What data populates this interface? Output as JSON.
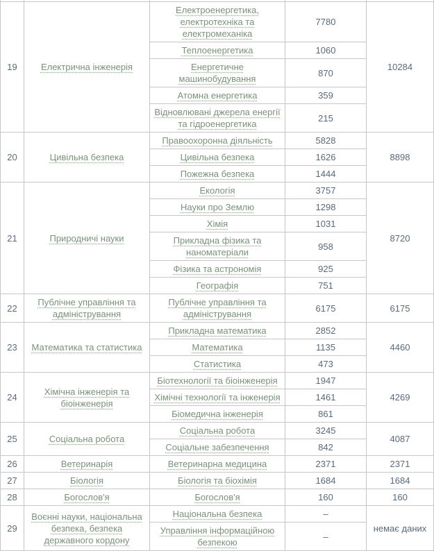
{
  "colors": {
    "link_green": "#7b917b",
    "number_gray": "#5a6978",
    "border_gray": "#c6c6c6",
    "background": "#ffffff"
  },
  "table": {
    "no_data_dash": "–",
    "groups": [
      {
        "no": "19",
        "field": "Електрична інженерія",
        "total": "10284",
        "specialties": [
          {
            "name": "Електроенергетика, електротехніка та електромеханіка",
            "count": "7780"
          },
          {
            "name": "Теплоенергетика",
            "count": "1060"
          },
          {
            "name": "Енергетичне машинобудування",
            "count": "870"
          },
          {
            "name": "Атомна енергетика",
            "count": "359"
          },
          {
            "name": "Відновлювані джерела енергії та гідроенергетика",
            "count": "215"
          }
        ]
      },
      {
        "no": "20",
        "field": "Цивільна безпека",
        "total": "8898",
        "specialties": [
          {
            "name": "Правоохоронна діяльність",
            "count": "5828"
          },
          {
            "name": "Цивільна безпека",
            "count": "1626"
          },
          {
            "name": "Пожежна безпека",
            "count": "1444"
          }
        ]
      },
      {
        "no": "21",
        "field": "Природничі науки",
        "total": "8720",
        "specialties": [
          {
            "name": "Екологія",
            "count": "3757"
          },
          {
            "name": "Науки про Землю",
            "count": "1298"
          },
          {
            "name": "Хімія",
            "count": "1031"
          },
          {
            "name": "Прикладна фізика та наноматеріали",
            "count": "958"
          },
          {
            "name": "Фізика та астрономія",
            "count": "925"
          },
          {
            "name": "Географія",
            "count": "751"
          }
        ]
      },
      {
        "no": "22",
        "field": "Публічне управління та адміністрування",
        "total": "6175",
        "specialties": [
          {
            "name": "Публічне управління та адміністрування",
            "count": "6175"
          }
        ]
      },
      {
        "no": "23",
        "field": "Математика та статистика",
        "total": "4460",
        "specialties": [
          {
            "name": "Прикладна математика",
            "count": "2852"
          },
          {
            "name": "Математика",
            "count": "1135"
          },
          {
            "name": "Статистика",
            "count": "473"
          }
        ]
      },
      {
        "no": "24",
        "field": "Хімічна інженерія та біоінженерія",
        "total": "4269",
        "specialties": [
          {
            "name": "Біотехнології та біоінженерія",
            "count": "1947"
          },
          {
            "name": "Хімічні технології та інженерія",
            "count": "1461"
          },
          {
            "name": "Біомедична інженерія",
            "count": "861"
          }
        ]
      },
      {
        "no": "25",
        "field": "Соціальна робота",
        "total": "4087",
        "specialties": [
          {
            "name": "Соціальна робота",
            "count": "3245"
          },
          {
            "name": "Соціальне забезпечення",
            "count": "842"
          }
        ]
      },
      {
        "no": "26",
        "field": "Ветеринарія",
        "total": "2371",
        "specialties": [
          {
            "name": "Ветеринарна медицина",
            "count": "2371"
          }
        ]
      },
      {
        "no": "27",
        "field": "Біологія",
        "total": "1684",
        "specialties": [
          {
            "name": "Біологія та біохімія",
            "count": "1684"
          }
        ]
      },
      {
        "no": "28",
        "field": "Богослов'я",
        "total": "160",
        "specialties": [
          {
            "name": "Богослов'я",
            "count": "160"
          }
        ]
      },
      {
        "no": "29",
        "field": "Воєнні науки, національна безпека, безпека державного кордону",
        "total": "немає даних",
        "specialties": [
          {
            "name": "Національна безпека",
            "count": "–"
          },
          {
            "name": "Управління інформаційною безпекою",
            "count": "–"
          }
        ]
      }
    ]
  }
}
